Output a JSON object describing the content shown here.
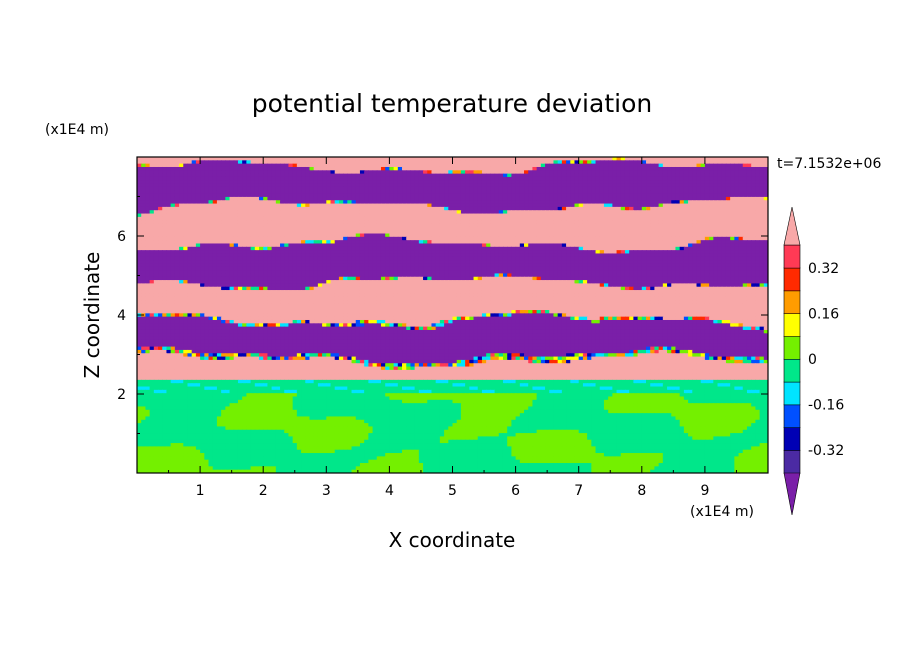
{
  "chart_data": {
    "type": "heatmap",
    "title": "potential temperature deviation",
    "xlabel": "X coordinate",
    "ylabel": "Z coordinate",
    "x_unit_label": "(x1E4 m)",
    "y_unit_label": "(x1E4 m)",
    "time_label": "t=7.1532e+06",
    "xlim": [
      0,
      10
    ],
    "ylim": [
      0,
      8
    ],
    "x_ticks": [
      "1",
      "2",
      "3",
      "4",
      "5",
      "6",
      "7",
      "8",
      "9"
    ],
    "y_ticks": [
      "2",
      "4",
      "6"
    ],
    "colorbar": {
      "tick_labels": [
        "0.32",
        "0.16",
        "0",
        "-0.16",
        "-0.32"
      ],
      "tick_values": [
        0.32,
        0.16,
        0,
        -0.16,
        -0.32
      ],
      "levels": [
        -0.4,
        -0.32,
        -0.24,
        -0.16,
        -0.08,
        0,
        0.08,
        0.16,
        0.24,
        0.32,
        0.4
      ],
      "colors": [
        "#7a1fa8",
        "#4b2aa3",
        "#0000b4",
        "#0050ff",
        "#00e4ff",
        "#00e78a",
        "#74f000",
        "#ffff00",
        "#ff9c00",
        "#ff2a00",
        "#ff3a55",
        "#f8a8a8"
      ],
      "under_color": "#7a1fa8",
      "over_color": "#f8a8a8"
    },
    "regions": [
      {
        "description": "upper layer z≈2.4–8 of alternating horizontal bands",
        "z_range": [
          2.4,
          8.0
        ],
        "dominant_values": [
          0.44,
          -0.44
        ]
      },
      {
        "description": "thin transition layer",
        "z_range": [
          2.0,
          2.4
        ],
        "dominant_values": [
          -0.04,
          -0.1
        ]
      },
      {
        "description": "lower mixed layer",
        "z_range": [
          0.0,
          2.0
        ],
        "dominant_values": [
          0.04,
          -0.04
        ]
      }
    ]
  }
}
